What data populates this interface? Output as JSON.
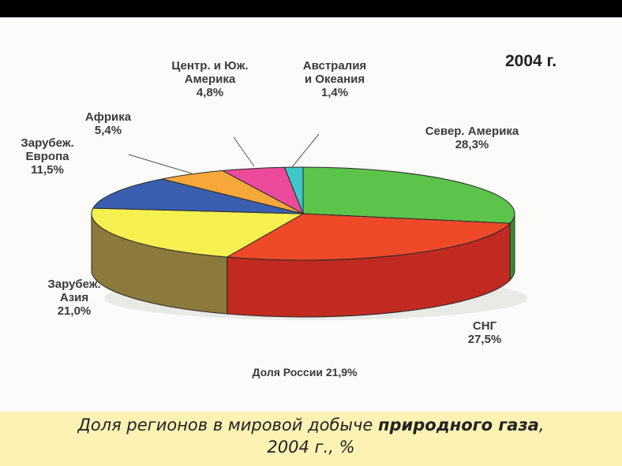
{
  "chart_data": {
    "type": "pie",
    "title": "2004 г.",
    "slices": [
      {
        "label_lines": [
          "Север. Америка"
        ],
        "value": 28.3,
        "value_text": "28,3%",
        "color": "#5cc44a",
        "side": "#3a8a2c"
      },
      {
        "label_lines": [
          "СНГ"
        ],
        "value": 27.5,
        "value_text": "27,5%",
        "color": "#ee4a2a",
        "side": "#c02a20"
      },
      {
        "label_lines": [
          "Зарубеж.",
          "Азия"
        ],
        "value": 21.0,
        "value_text": "21,0%",
        "color": "#f6f050",
        "side": "#8c7a3c"
      },
      {
        "label_lines": [
          "Зарубеж.",
          "Европа"
        ],
        "value": 11.5,
        "value_text": "11,5%",
        "color": "#3a5fae",
        "side": "#26407c"
      },
      {
        "label_lines": [
          "Африка"
        ],
        "value": 5.4,
        "value_text": "5,4%",
        "color": "#f6a83a",
        "side": "#b8782a"
      },
      {
        "label_lines": [
          "Центр. и Юж.",
          "Америка"
        ],
        "value": 4.8,
        "value_text": "4,8%",
        "color": "#ec4a9a",
        "side": "#a83270"
      },
      {
        "label_lines": [
          "Австралия",
          "и Океания"
        ],
        "value": 1.4,
        "value_text": "1,4%",
        "color": "#3ec6c8",
        "side": "#2a8a8c"
      }
    ],
    "annotation": "Доля России 21,9%"
  },
  "caption": {
    "line1_normal": "Доля регионов в мировой добыче ",
    "line1_bold": "природного газа",
    "line1_end": ",",
    "line2": "2004 г., %"
  }
}
